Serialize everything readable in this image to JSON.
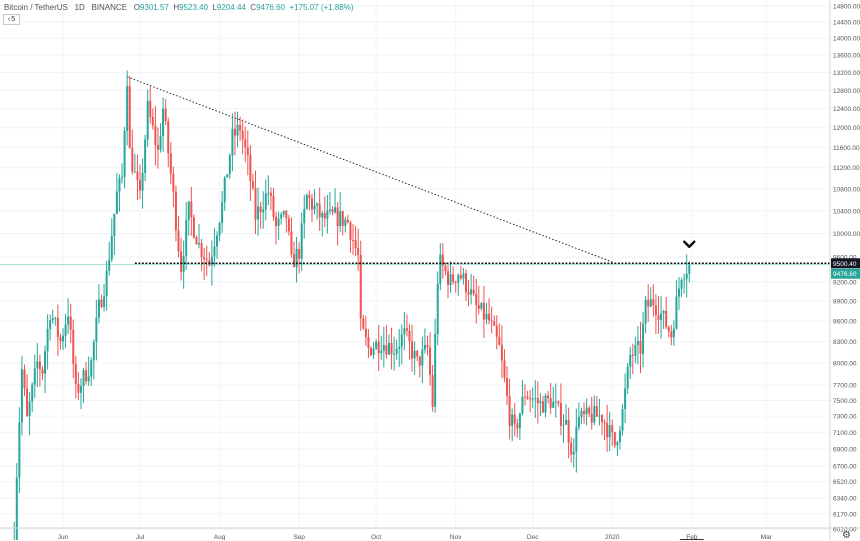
{
  "header": {
    "symbol": "Bitcoin / TetherUS",
    "interval": "1D",
    "exchange": "BINANCE",
    "o_label": "O",
    "o_value": "9301.57",
    "h_label": "H",
    "h_value": "9523.40",
    "l_label": "L",
    "l_value": "9204.44",
    "c_label": "C",
    "c_value": "9476.60",
    "change": "+175.07 (+1.88%)"
  },
  "indicator_toggle": {
    "label": "5"
  },
  "colors": {
    "up": "#26a69a",
    "down": "#ef5350",
    "grid": "#f0f3fa",
    "axis_text": "#555555",
    "last_price": "#26a69a"
  },
  "chart_data": {
    "type": "candlestick",
    "y_axis_labels": [
      "14800.00",
      "14400.00",
      "14000.00",
      "13600.00",
      "13200.00",
      "12800.00",
      "12400.00",
      "12000.00",
      "11600.00",
      "11200.00",
      "10800.00",
      "10400.00",
      "10000.00",
      "9600.00",
      "9200.00",
      "8900.00",
      "8600.00",
      "8300.00",
      "8000.00",
      "7700.00",
      "7500.00",
      "7300.00",
      "7100.00",
      "6900.00",
      "6700.00",
      "6520.00",
      "6340.00",
      "6170.00",
      "6010.00"
    ],
    "x_axis_labels": [
      "Jun",
      "Jul",
      "Aug",
      "Sep",
      "Oct",
      "Nov",
      "Dec",
      "2020",
      "Feb",
      "Mar"
    ],
    "price_labels": {
      "horizontal_level": "9500.40",
      "last_price": "9476.60"
    },
    "horizontal_level": 9500.4,
    "last_price": 9476.6,
    "trendline": {
      "from": {
        "date": "2019-06-26",
        "price": 13100
      },
      "to": {
        "date": "2020-01-01",
        "price": 9520
      }
    },
    "start_date": "2019-05-13",
    "end_date": "2020-01-31",
    "anchors": [
      [
        "2019-05-13",
        6000
      ],
      [
        "2019-05-16",
        7900
      ],
      [
        "2019-05-18",
        7250
      ],
      [
        "2019-05-22",
        8000
      ],
      [
        "2019-05-24",
        7900
      ],
      [
        "2019-05-27",
        8750
      ],
      [
        "2019-05-31",
        8300
      ],
      [
        "2019-06-03",
        8750
      ],
      [
        "2019-06-06",
        7600
      ],
      [
        "2019-06-09",
        7800
      ],
      [
        "2019-06-12",
        8000
      ],
      [
        "2019-06-15",
        8800
      ],
      [
        "2019-06-18",
        9300
      ],
      [
        "2019-06-22",
        10700
      ],
      [
        "2019-06-24",
        11000
      ],
      [
        "2019-06-26",
        13100
      ],
      [
        "2019-06-27",
        11500
      ],
      [
        "2019-07-01",
        10600
      ],
      [
        "2019-07-04",
        12400
      ],
      [
        "2019-07-08",
        11500
      ],
      [
        "2019-07-10",
        12400
      ],
      [
        "2019-07-12",
        11500
      ],
      [
        "2019-07-16",
        9800
      ],
      [
        "2019-07-17",
        9450
      ],
      [
        "2019-07-20",
        10400
      ],
      [
        "2019-07-24",
        9800
      ],
      [
        "2019-07-28",
        9500
      ],
      [
        "2019-08-02",
        10500
      ],
      [
        "2019-08-06",
        11800
      ],
      [
        "2019-08-09",
        12000
      ],
      [
        "2019-08-12",
        11300
      ],
      [
        "2019-08-15",
        10300
      ],
      [
        "2019-08-20",
        10750
      ],
      [
        "2019-08-23",
        10100
      ],
      [
        "2019-08-27",
        10300
      ],
      [
        "2019-08-29",
        9500
      ],
      [
        "2019-09-01",
        9700
      ],
      [
        "2019-09-04",
        10650
      ],
      [
        "2019-09-10",
        10250
      ],
      [
        "2019-09-15",
        10300
      ],
      [
        "2019-09-20",
        10200
      ],
      [
        "2019-09-24",
        9600
      ],
      [
        "2019-09-25",
        8500
      ],
      [
        "2019-09-28",
        8200
      ],
      [
        "2019-10-03",
        8300
      ],
      [
        "2019-10-08",
        8200
      ],
      [
        "2019-10-12",
        8400
      ],
      [
        "2019-10-17",
        8000
      ],
      [
        "2019-10-21",
        8200
      ],
      [
        "2019-10-23",
        7450
      ],
      [
        "2019-10-25",
        9250
      ],
      [
        "2019-10-26",
        9500
      ],
      [
        "2019-10-30",
        9200
      ],
      [
        "2019-11-02",
        9350
      ],
      [
        "2019-11-06",
        9100
      ],
      [
        "2019-11-09",
        8800
      ],
      [
        "2019-11-14",
        8600
      ],
      [
        "2019-11-18",
        8200
      ],
      [
        "2019-11-22",
        7300
      ],
      [
        "2019-11-24",
        7100
      ],
      [
        "2019-11-28",
        7600
      ],
      [
        "2019-12-04",
        7450
      ],
      [
        "2019-12-08",
        7500
      ],
      [
        "2019-12-14",
        7200
      ],
      [
        "2019-12-17",
        6800
      ],
      [
        "2019-12-18",
        7250
      ],
      [
        "2019-12-24",
        7300
      ],
      [
        "2019-12-28",
        7300
      ],
      [
        "2020-01-02",
        6950
      ],
      [
        "2020-01-05",
        7350
      ],
      [
        "2020-01-08",
        8100
      ],
      [
        "2020-01-12",
        8200
      ],
      [
        "2020-01-14",
        8800
      ],
      [
        "2020-01-17",
        8900
      ],
      [
        "2020-01-20",
        8700
      ],
      [
        "2020-01-24",
        8400
      ],
      [
        "2020-01-28",
        9350
      ],
      [
        "2020-01-31",
        9476.6
      ]
    ]
  }
}
